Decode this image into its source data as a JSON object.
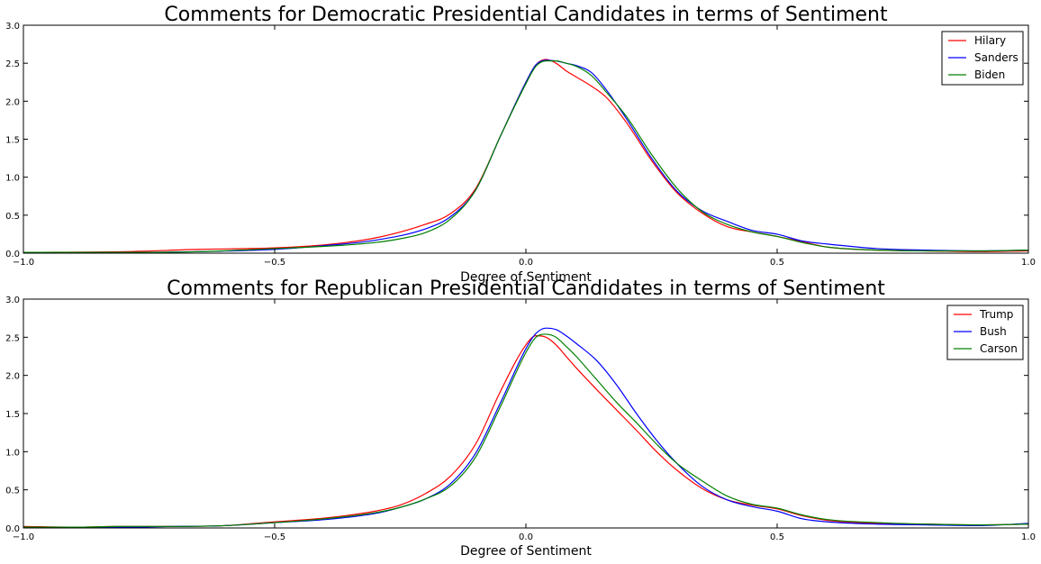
{
  "chart_data": [
    {
      "type": "line",
      "title": "Comments for Democratic Presidential Candidates in terms of Sentiment",
      "xlabel": "Degree of Sentiment",
      "ylabel": "",
      "xlim": [
        -1.0,
        1.0
      ],
      "ylim": [
        0.0,
        3.0
      ],
      "xticks": [
        -1.0,
        -0.5,
        0.0,
        0.5,
        1.0
      ],
      "xtick_labels": [
        "−1.0",
        "−0.5",
        "0.0",
        "0.5",
        "1.0"
      ],
      "yticks": [
        0.0,
        0.5,
        1.0,
        1.5,
        2.0,
        2.5,
        3.0
      ],
      "ytick_labels": [
        "0.0",
        "0.5",
        "1.0",
        "1.5",
        "2.0",
        "2.5",
        "3.0"
      ],
      "grid": false,
      "legend_position": "top-right",
      "series": [
        {
          "name": "Hilary",
          "color": "#ff0000",
          "x": [
            -1.0,
            -0.8,
            -0.65,
            -0.5,
            -0.4,
            -0.3,
            -0.2,
            -0.15,
            -0.1,
            -0.05,
            0.0,
            0.02,
            0.04,
            0.06,
            0.08,
            0.1,
            0.13,
            0.16,
            0.2,
            0.25,
            0.3,
            0.35,
            0.4,
            0.45,
            0.5,
            0.55,
            0.6,
            0.7,
            0.8,
            0.9,
            1.0
          ],
          "y": [
            0.01,
            0.02,
            0.05,
            0.07,
            0.11,
            0.2,
            0.38,
            0.52,
            0.85,
            1.55,
            2.25,
            2.48,
            2.55,
            2.5,
            2.4,
            2.32,
            2.2,
            2.05,
            1.72,
            1.22,
            0.8,
            0.53,
            0.35,
            0.28,
            0.22,
            0.15,
            0.08,
            0.04,
            0.03,
            0.02,
            0.03
          ]
        },
        {
          "name": "Sanders",
          "color": "#0000ff",
          "x": [
            -1.0,
            -0.8,
            -0.65,
            -0.5,
            -0.4,
            -0.3,
            -0.2,
            -0.15,
            -0.1,
            -0.05,
            0.0,
            0.02,
            0.04,
            0.06,
            0.08,
            0.1,
            0.13,
            0.16,
            0.2,
            0.25,
            0.3,
            0.35,
            0.4,
            0.45,
            0.5,
            0.55,
            0.6,
            0.7,
            0.8,
            0.9,
            1.0
          ],
          "y": [
            0.01,
            0.01,
            0.02,
            0.05,
            0.1,
            0.17,
            0.32,
            0.48,
            0.83,
            1.55,
            2.25,
            2.48,
            2.54,
            2.53,
            2.5,
            2.47,
            2.38,
            2.15,
            1.77,
            1.25,
            0.82,
            0.56,
            0.42,
            0.3,
            0.25,
            0.16,
            0.12,
            0.06,
            0.04,
            0.03,
            0.04
          ]
        },
        {
          "name": "Biden",
          "color": "#008000",
          "x": [
            -1.0,
            -0.8,
            -0.65,
            -0.5,
            -0.4,
            -0.3,
            -0.25,
            -0.2,
            -0.15,
            -0.1,
            -0.05,
            0.0,
            0.02,
            0.04,
            0.06,
            0.08,
            0.1,
            0.13,
            0.16,
            0.2,
            0.25,
            0.3,
            0.35,
            0.4,
            0.45,
            0.5,
            0.55,
            0.6,
            0.7,
            0.8,
            0.9,
            1.0
          ],
          "y": [
            0.01,
            0.01,
            0.02,
            0.06,
            0.09,
            0.14,
            0.19,
            0.27,
            0.45,
            0.83,
            1.55,
            2.23,
            2.46,
            2.53,
            2.53,
            2.5,
            2.46,
            2.34,
            2.12,
            1.8,
            1.3,
            0.86,
            0.55,
            0.38,
            0.28,
            0.22,
            0.14,
            0.08,
            0.04,
            0.03,
            0.03,
            0.04
          ]
        }
      ]
    },
    {
      "type": "line",
      "title": "Comments for Republican Presidential Candidates in terms of Sentiment",
      "xlabel": "Degree of Sentiment",
      "ylabel": "",
      "xlim": [
        -1.0,
        1.0
      ],
      "ylim": [
        0.0,
        3.0
      ],
      "xticks": [
        -1.0,
        -0.5,
        0.0,
        0.5,
        1.0
      ],
      "xtick_labels": [
        "−1.0",
        "−0.5",
        "0.0",
        "0.5",
        "1.0"
      ],
      "yticks": [
        0.0,
        0.5,
        1.0,
        1.5,
        2.0,
        2.5,
        3.0
      ],
      "ytick_labels": [
        "0.0",
        "0.5",
        "1.0",
        "1.5",
        "2.0",
        "2.5",
        "3.0"
      ],
      "grid": false,
      "legend_position": "top-right",
      "series": [
        {
          "name": "Trump",
          "color": "#ff0000",
          "x": [
            -1.0,
            -0.9,
            -0.8,
            -0.7,
            -0.6,
            -0.5,
            -0.4,
            -0.3,
            -0.25,
            -0.2,
            -0.15,
            -0.1,
            -0.05,
            0.0,
            0.02,
            0.04,
            0.06,
            0.08,
            0.1,
            0.14,
            0.18,
            0.22,
            0.26,
            0.3,
            0.35,
            0.4,
            0.45,
            0.5,
            0.55,
            0.6,
            0.7,
            0.8,
            0.9,
            1.0
          ],
          "y": [
            0.02,
            0.01,
            0.02,
            0.02,
            0.03,
            0.08,
            0.13,
            0.22,
            0.3,
            0.45,
            0.68,
            1.1,
            1.8,
            2.4,
            2.52,
            2.5,
            2.4,
            2.25,
            2.1,
            1.82,
            1.55,
            1.28,
            1.0,
            0.76,
            0.52,
            0.37,
            0.3,
            0.25,
            0.16,
            0.1,
            0.06,
            0.05,
            0.04,
            0.05
          ]
        },
        {
          "name": "Bush",
          "color": "#0000ff",
          "x": [
            -1.0,
            -0.9,
            -0.8,
            -0.7,
            -0.6,
            -0.5,
            -0.4,
            -0.3,
            -0.25,
            -0.2,
            -0.15,
            -0.1,
            -0.05,
            0.0,
            0.02,
            0.04,
            0.06,
            0.08,
            0.1,
            0.14,
            0.18,
            0.22,
            0.26,
            0.3,
            0.35,
            0.4,
            0.45,
            0.5,
            0.55,
            0.6,
            0.7,
            0.8,
            0.9,
            1.0
          ],
          "y": [
            0.01,
            0.01,
            0.01,
            0.02,
            0.03,
            0.07,
            0.11,
            0.19,
            0.27,
            0.38,
            0.58,
            0.98,
            1.65,
            2.35,
            2.55,
            2.62,
            2.6,
            2.52,
            2.42,
            2.2,
            1.88,
            1.5,
            1.15,
            0.85,
            0.55,
            0.37,
            0.28,
            0.22,
            0.12,
            0.08,
            0.05,
            0.04,
            0.03,
            0.06
          ]
        },
        {
          "name": "Carson",
          "color": "#008000",
          "x": [
            -1.0,
            -0.9,
            -0.8,
            -0.7,
            -0.6,
            -0.5,
            -0.4,
            -0.3,
            -0.25,
            -0.2,
            -0.15,
            -0.1,
            -0.05,
            0.0,
            0.02,
            0.04,
            0.06,
            0.08,
            0.1,
            0.14,
            0.18,
            0.22,
            0.26,
            0.3,
            0.35,
            0.4,
            0.45,
            0.5,
            0.55,
            0.6,
            0.7,
            0.8,
            0.9,
            1.0
          ],
          "y": [
            0.01,
            0.01,
            0.02,
            0.02,
            0.03,
            0.07,
            0.12,
            0.2,
            0.27,
            0.38,
            0.55,
            0.93,
            1.6,
            2.3,
            2.5,
            2.54,
            2.5,
            2.38,
            2.25,
            1.95,
            1.65,
            1.38,
            1.1,
            0.85,
            0.62,
            0.42,
            0.31,
            0.26,
            0.17,
            0.11,
            0.07,
            0.05,
            0.04,
            0.05
          ]
        }
      ]
    }
  ]
}
